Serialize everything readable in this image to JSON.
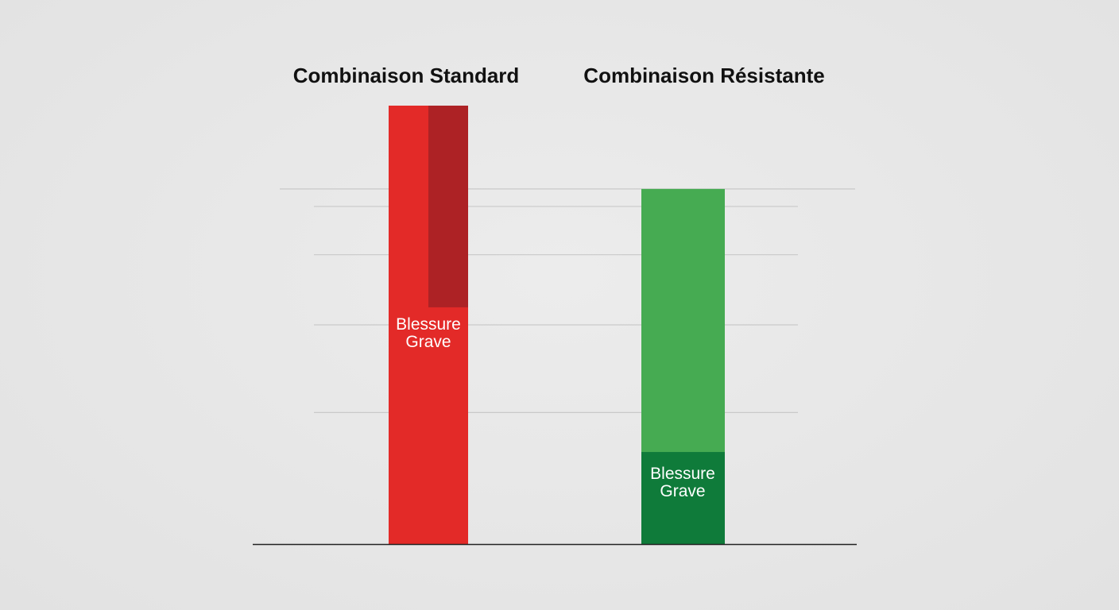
{
  "chart_data": {
    "type": "bar",
    "categories": [
      "Combinaison Standard",
      "Combinaison Résistante"
    ],
    "ylim": [
      0,
      100
    ],
    "grid": true,
    "gridlines": [
      30,
      50,
      66,
      77,
      81
    ],
    "bars": [
      {
        "category": "Combinaison Standard",
        "total": 100,
        "highlight_from": 54,
        "highlight_to": 100,
        "highlight_side": "right",
        "label": "Blessure\nGrave",
        "label_value": 48,
        "base_color": "#e32a28",
        "highlight_color": "#ad2225"
      },
      {
        "category": "Combinaison Résistante",
        "total": 81,
        "highlight_from": 0,
        "highlight_to": 21,
        "highlight_side": "full",
        "label": "Blessure\nGrave",
        "label_value": 14,
        "base_color": "#46ab52",
        "highlight_color": "#0f7b3a"
      }
    ],
    "axis_color": "#222222",
    "grid_color": "#c9c9c9"
  }
}
